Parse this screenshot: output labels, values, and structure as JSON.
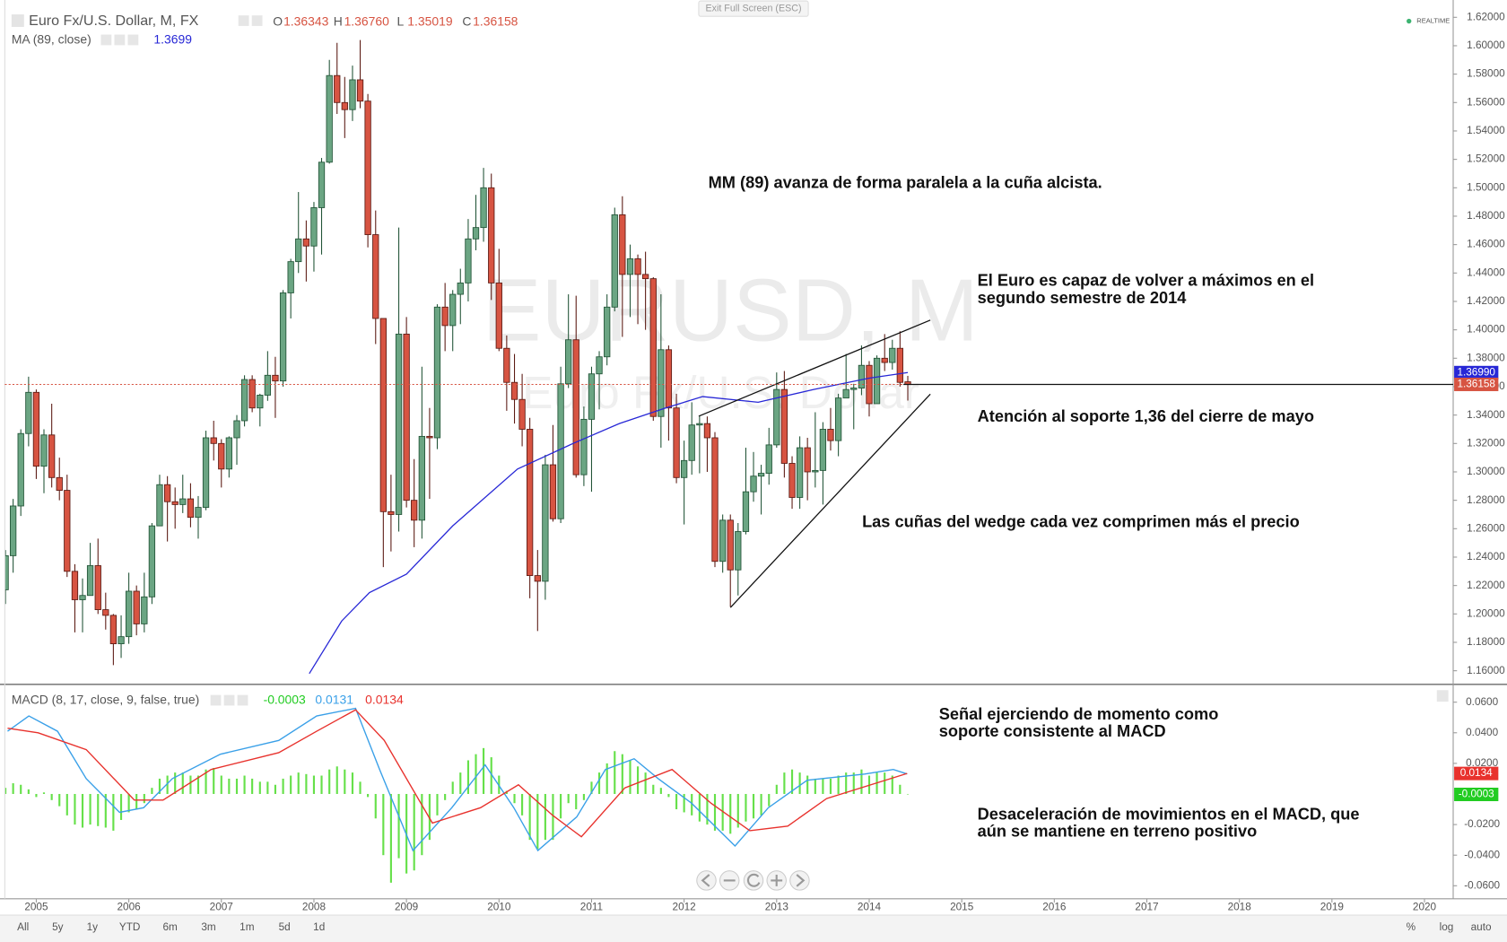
{
  "ui": {
    "exit_button": "Exit Full Screen (ESC)",
    "realtime": "REALTIME",
    "ranges": [
      "All",
      "5y",
      "1y",
      "YTD",
      "6m",
      "3m",
      "1m",
      "5d",
      "1d"
    ],
    "right_buttons": [
      "%",
      "log",
      "auto"
    ],
    "watermark": "EURUSD, M",
    "watermark_sub": "Euro Fx/U.S. Dollar"
  },
  "chart_data": [
    {
      "type": "candlestick",
      "title": "Euro Fx/U.S. Dollar, M, FX",
      "ohlc_keys": [
        "O",
        "H",
        "L",
        "C"
      ],
      "last_high_label": "1.36760",
      "up_color": "#6ba583",
      "down_color": "#d75442",
      "grid": false,
      "x": [
        2004.667,
        2004.75,
        2004.833,
        2004.917,
        2005.0,
        2005.083,
        2005.167,
        2005.25,
        2005.333,
        2005.417,
        2005.5,
        2005.583,
        2005.667,
        2005.75,
        2005.833,
        2005.917,
        2006.0,
        2006.083,
        2006.167,
        2006.25,
        2006.333,
        2006.417,
        2006.5,
        2006.583,
        2006.667,
        2006.75,
        2006.833,
        2006.917,
        2007.0,
        2007.083,
        2007.167,
        2007.25,
        2007.333,
        2007.417,
        2007.5,
        2007.583,
        2007.667,
        2007.75,
        2007.833,
        2007.917,
        2008.0,
        2008.083,
        2008.167,
        2008.25,
        2008.333,
        2008.417,
        2008.5,
        2008.583,
        2008.667,
        2008.75,
        2008.833,
        2008.917,
        2009.0,
        2009.083,
        2009.167,
        2009.25,
        2009.333,
        2009.417,
        2009.5,
        2009.583,
        2009.667,
        2009.75,
        2009.833,
        2009.917,
        2010.0,
        2010.083,
        2010.167,
        2010.25,
        2010.333,
        2010.417,
        2010.5,
        2010.583,
        2010.667,
        2010.75,
        2010.833,
        2010.917,
        2011.0,
        2011.083,
        2011.167,
        2011.25,
        2011.333,
        2011.417,
        2011.5,
        2011.583,
        2011.667,
        2011.75,
        2011.833,
        2011.917,
        2012.0,
        2012.083,
        2012.167,
        2012.25,
        2012.333,
        2012.417,
        2012.5,
        2012.583,
        2012.667,
        2012.75,
        2012.833,
        2012.917,
        2013.0,
        2013.083,
        2013.167,
        2013.25,
        2013.333,
        2013.417,
        2013.5,
        2013.583,
        2013.667,
        2013.75,
        2013.833,
        2013.917,
        2014.0,
        2014.083,
        2014.167,
        2014.25,
        2014.333,
        2014.417
      ],
      "open": [
        1.217,
        1.241,
        1.276,
        1.327,
        1.356,
        1.304,
        1.326,
        1.296,
        1.287,
        1.23,
        1.21,
        1.213,
        1.234,
        1.203,
        1.199,
        1.179,
        1.184,
        1.216,
        1.193,
        1.212,
        1.262,
        1.291,
        1.279,
        1.277,
        1.281,
        1.268,
        1.275,
        1.324,
        1.32,
        1.302,
        1.324,
        1.336,
        1.365,
        1.345,
        1.354,
        1.368,
        1.364,
        1.426,
        1.448,
        1.464,
        1.459,
        1.486,
        1.518,
        1.579,
        1.56,
        1.555,
        1.576,
        1.561,
        1.467,
        1.408,
        1.272,
        1.27,
        1.397,
        1.28,
        1.266,
        1.325,
        1.324,
        1.416,
        1.403,
        1.425,
        1.433,
        1.464,
        1.472,
        1.5,
        1.433,
        1.387,
        1.363,
        1.351,
        1.33,
        1.227,
        1.223,
        1.305,
        1.267,
        1.362,
        1.393,
        1.298,
        1.337,
        1.369,
        1.381,
        1.416,
        1.481,
        1.439,
        1.45,
        1.439,
        1.436,
        1.339,
        1.386,
        1.345,
        1.296,
        1.308,
        1.333,
        1.334,
        1.324,
        1.237,
        1.266,
        1.231,
        1.258,
        1.286,
        1.297,
        1.299,
        1.319,
        1.358,
        1.306,
        1.282,
        1.317,
        1.3,
        1.301,
        1.33,
        1.322,
        1.352,
        1.358,
        1.359,
        1.375,
        1.348,
        1.38,
        1.377,
        1.387,
        1.36343
      ],
      "high": [
        1.245,
        1.281,
        1.33,
        1.367,
        1.358,
        1.33,
        1.348,
        1.31,
        1.298,
        1.235,
        1.225,
        1.25,
        1.253,
        1.215,
        1.2,
        1.199,
        1.229,
        1.22,
        1.229,
        1.264,
        1.298,
        1.297,
        1.289,
        1.298,
        1.292,
        1.283,
        1.329,
        1.336,
        1.323,
        1.325,
        1.34,
        1.368,
        1.368,
        1.355,
        1.385,
        1.381,
        1.428,
        1.45,
        1.497,
        1.477,
        1.49,
        1.521,
        1.59,
        1.602,
        1.578,
        1.586,
        1.604,
        1.566,
        1.484,
        1.408,
        1.298,
        1.472,
        1.409,
        1.309,
        1.374,
        1.345,
        1.418,
        1.433,
        1.428,
        1.443,
        1.478,
        1.495,
        1.514,
        1.51,
        1.457,
        1.396,
        1.383,
        1.369,
        1.338,
        1.245,
        1.312,
        1.333,
        1.374,
        1.425,
        1.424,
        1.346,
        1.374,
        1.385,
        1.425,
        1.486,
        1.494,
        1.46,
        1.453,
        1.455,
        1.437,
        1.425,
        1.389,
        1.355,
        1.322,
        1.349,
        1.339,
        1.339,
        1.328,
        1.27,
        1.27,
        1.264,
        1.317,
        1.314,
        1.305,
        1.331,
        1.37,
        1.371,
        1.311,
        1.325,
        1.324,
        1.342,
        1.335,
        1.345,
        1.355,
        1.383,
        1.362,
        1.389,
        1.378,
        1.382,
        1.397,
        1.393,
        1.399,
        1.3676
      ],
      "low": [
        1.207,
        1.229,
        1.269,
        1.318,
        1.295,
        1.285,
        1.289,
        1.28,
        1.226,
        1.187,
        1.187,
        1.213,
        1.2,
        1.189,
        1.164,
        1.169,
        1.179,
        1.185,
        1.187,
        1.207,
        1.262,
        1.251,
        1.26,
        1.271,
        1.261,
        1.253,
        1.273,
        1.308,
        1.289,
        1.296,
        1.305,
        1.332,
        1.342,
        1.332,
        1.35,
        1.338,
        1.36,
        1.408,
        1.44,
        1.434,
        1.441,
        1.453,
        1.517,
        1.552,
        1.535,
        1.547,
        1.556,
        1.458,
        1.39,
        1.233,
        1.244,
        1.258,
        1.275,
        1.247,
        1.253,
        1.281,
        1.316,
        1.385,
        1.385,
        1.404,
        1.42,
        1.456,
        1.462,
        1.421,
        1.385,
        1.343,
        1.334,
        1.318,
        1.211,
        1.188,
        1.21,
        1.265,
        1.264,
        1.359,
        1.296,
        1.29,
        1.286,
        1.344,
        1.375,
        1.413,
        1.395,
        1.409,
        1.404,
        1.4,
        1.336,
        1.317,
        1.322,
        1.292,
        1.263,
        1.298,
        1.299,
        1.3,
        1.233,
        1.229,
        1.205,
        1.213,
        1.256,
        1.279,
        1.27,
        1.291,
        1.317,
        1.296,
        1.274,
        1.274,
        1.28,
        1.289,
        1.277,
        1.315,
        1.311,
        1.352,
        1.33,
        1.354,
        1.339,
        1.348,
        1.371,
        1.372,
        1.36,
        1.35019
      ],
      "close": [
        1.241,
        1.276,
        1.327,
        1.356,
        1.304,
        1.326,
        1.296,
        1.287,
        1.23,
        1.21,
        1.213,
        1.234,
        1.203,
        1.199,
        1.179,
        1.184,
        1.216,
        1.193,
        1.212,
        1.262,
        1.291,
        1.279,
        1.277,
        1.281,
        1.268,
        1.275,
        1.324,
        1.32,
        1.302,
        1.324,
        1.336,
        1.365,
        1.345,
        1.354,
        1.368,
        1.364,
        1.426,
        1.448,
        1.464,
        1.459,
        1.486,
        1.518,
        1.579,
        1.56,
        1.555,
        1.576,
        1.561,
        1.467,
        1.408,
        1.272,
        1.27,
        1.397,
        1.28,
        1.266,
        1.325,
        1.324,
        1.416,
        1.403,
        1.425,
        1.433,
        1.464,
        1.472,
        1.5,
        1.433,
        1.387,
        1.363,
        1.351,
        1.33,
        1.227,
        1.223,
        1.305,
        1.267,
        1.362,
        1.393,
        1.298,
        1.337,
        1.369,
        1.381,
        1.416,
        1.481,
        1.439,
        1.45,
        1.439,
        1.436,
        1.339,
        1.386,
        1.345,
        1.296,
        1.308,
        1.333,
        1.334,
        1.324,
        1.237,
        1.266,
        1.231,
        1.258,
        1.286,
        1.297,
        1.299,
        1.319,
        1.358,
        1.306,
        1.282,
        1.317,
        1.3,
        1.301,
        1.33,
        1.322,
        1.352,
        1.358,
        1.359,
        1.375,
        1.348,
        1.38,
        1.377,
        1.387,
        1.363,
        1.36158
      ],
      "series": [
        {
          "name": "MA (89, close)",
          "color": "#2727d6",
          "badge_label": "1.36990",
          "x": [
            2007.95,
            2008.3,
            2008.6,
            2009.0,
            2009.5,
            2010.2,
            2010.8,
            2011.3,
            2011.8,
            2012.2,
            2012.8,
            2013.4,
            2014.0,
            2014.417
          ],
          "values": [
            1.158,
            1.195,
            1.215,
            1.228,
            1.262,
            1.302,
            1.32,
            1.334,
            1.345,
            1.353,
            1.349,
            1.358,
            1.366,
            1.3699
          ]
        }
      ],
      "xlim": [
        2004.66,
        2020.31
      ],
      "xticks": [
        2005,
        2006,
        2007,
        2008,
        2009,
        2010,
        2011,
        2012,
        2013,
        2014,
        2015,
        2016,
        2017,
        2018,
        2019,
        2020
      ],
      "ylim": [
        1.1504,
        1.6288
      ],
      "yticks": [
        {
          "value": 1.16,
          "label": "1.16000"
        },
        {
          "value": 1.18,
          "label": "1.18000"
        },
        {
          "value": 1.2,
          "label": "1.20000"
        },
        {
          "value": 1.22,
          "label": "1.22000"
        },
        {
          "value": 1.24,
          "label": "1.24000"
        },
        {
          "value": 1.26,
          "label": "1.26000"
        },
        {
          "value": 1.28,
          "label": "1.28000"
        },
        {
          "value": 1.3,
          "label": "1.30000"
        },
        {
          "value": 1.32,
          "label": "1.32000"
        },
        {
          "value": 1.34,
          "label": "1.34000"
        },
        {
          "value": 1.36,
          "label": "1.36000"
        },
        {
          "value": 1.38,
          "label": "1.38000"
        },
        {
          "value": 1.4,
          "label": "1.40000"
        },
        {
          "value": 1.42,
          "label": "1.42000"
        },
        {
          "value": 1.44,
          "label": "1.44000"
        },
        {
          "value": 1.46,
          "label": "1.46000"
        },
        {
          "value": 1.48,
          "label": "1.48000"
        },
        {
          "value": 1.5,
          "label": "1.50000"
        },
        {
          "value": 1.52,
          "label": "1.52000"
        },
        {
          "value": 1.54,
          "label": "1.54000"
        },
        {
          "value": 1.56,
          "label": "1.56000"
        },
        {
          "value": 1.58,
          "label": "1.58000"
        },
        {
          "value": 1.6,
          "label": "1.60000"
        },
        {
          "value": 1.62,
          "label": "1.62000"
        }
      ],
      "annotations": [
        [
          "MM (89) avanza de forma paralela a la cuña alcista."
        ],
        [
          "El Euro es capaz de volver a máximos en el",
          "segundo semestre de 2014"
        ],
        [
          "Atención al soporte 1,36 del cierre de mayo"
        ],
        [
          "Las cuñas del wedge cada vez comprimen más el precio"
        ]
      ]
    },
    {
      "type": "macd",
      "title": "MACD (8, 17, close, 9, false, true)",
      "histogram": {
        "color": "#66e04a",
        "legend_color": "#22cc22",
        "values": [
          0.004,
          0.007,
          0.006,
          0.003,
          -0.002,
          0.001,
          -0.004,
          -0.008,
          -0.014,
          -0.02,
          -0.022,
          -0.02,
          -0.021,
          -0.022,
          -0.024,
          -0.017,
          -0.012,
          -0.01,
          -0.006,
          0.004,
          0.01,
          0.012,
          0.014,
          0.014,
          0.012,
          0.012,
          0.016,
          0.017,
          0.012,
          0.01,
          0.01,
          0.012,
          0.01,
          0.008,
          0.008,
          0.006,
          0.01,
          0.012,
          0.014,
          0.013,
          0.012,
          0.012,
          0.016,
          0.018,
          0.016,
          0.014,
          0.008,
          -0.002,
          -0.016,
          -0.04,
          -0.058,
          -0.042,
          -0.052,
          -0.05,
          -0.04,
          -0.03,
          -0.014,
          -0.004,
          0.008,
          0.014,
          0.022,
          0.026,
          0.03,
          0.024,
          0.012,
          0.002,
          -0.006,
          -0.014,
          -0.03,
          -0.036,
          -0.03,
          -0.03,
          -0.016,
          -0.006,
          -0.01,
          -0.004,
          0.008,
          0.014,
          0.02,
          0.028,
          0.026,
          0.022,
          0.018,
          0.014,
          0.006,
          0.004,
          -0.002,
          -0.01,
          -0.012,
          -0.014,
          -0.018,
          -0.02,
          -0.024,
          -0.024,
          -0.026,
          -0.022,
          -0.018,
          -0.016,
          -0.014,
          -0.008,
          0.006,
          0.014,
          0.016,
          0.014,
          0.012,
          0.01,
          0.01,
          0.01,
          0.012,
          0.014,
          0.014,
          0.016,
          0.012,
          0.014,
          0.014,
          0.012,
          0.006,
          -0.0003
        ]
      },
      "series": [
        {
          "color": "#3aa0e8",
          "x": [
            2004.69,
            2004.92,
            2005.23,
            2005.54,
            2005.9,
            2006.16,
            2006.47,
            2006.99,
            2007.62,
            2008.03,
            2008.45,
            2008.71,
            2009.07,
            2009.49,
            2009.85,
            2010.16,
            2010.42,
            2010.84,
            2011.15,
            2011.46,
            2011.72,
            2012.08,
            2012.55,
            2012.91,
            2013.33,
            2013.95,
            2014.26,
            2014.41
          ],
          "values": [
            0.041,
            0.051,
            0.041,
            0.01,
            -0.012,
            -0.009,
            0.01,
            0.026,
            0.035,
            0.051,
            0.056,
            0.016,
            -0.037,
            -0.009,
            0.019,
            -0.009,
            -0.037,
            -0.015,
            0.016,
            0.023,
            0.01,
            -0.006,
            -0.034,
            -0.009,
            0.009,
            0.013,
            0.016,
            0.0131
          ]
        },
        {
          "color": "#e8322d",
          "x": [
            2004.69,
            2005.02,
            2005.54,
            2006.06,
            2006.37,
            2006.89,
            2007.62,
            2008.03,
            2008.45,
            2008.76,
            2009.28,
            2009.8,
            2010.21,
            2010.58,
            2010.89,
            2011.36,
            2011.87,
            2012.29,
            2012.71,
            2013.12,
            2013.54,
            2014.41
          ],
          "values": [
            0.043,
            0.04,
            0.029,
            -0.004,
            -0.004,
            0.016,
            0.027,
            0.041,
            0.055,
            0.035,
            -0.019,
            -0.009,
            0.006,
            -0.014,
            -0.028,
            0.004,
            0.016,
            -0.006,
            -0.024,
            -0.021,
            -0.003,
            0.0134
          ]
        }
      ],
      "ylim": [
        -0.0685,
        0.071
      ],
      "yticks": [
        {
          "value": 0.06,
          "label": "0.0600"
        },
        {
          "value": 0.04,
          "label": "0.0400"
        },
        {
          "value": 0.02,
          "label": "0.0200"
        },
        {
          "value": -0.02,
          "label": "-0.0200"
        },
        {
          "value": -0.04,
          "label": "-0.0400"
        },
        {
          "value": -0.06,
          "label": "-0.0600"
        }
      ],
      "annotations": [
        [
          "Señal ejerciendo de momento como",
          "soporte consistente al MACD"
        ],
        [
          "Desaceleración de movimientos en el MACD, que",
          "aún se mantiene en terreno positivo"
        ]
      ]
    }
  ]
}
